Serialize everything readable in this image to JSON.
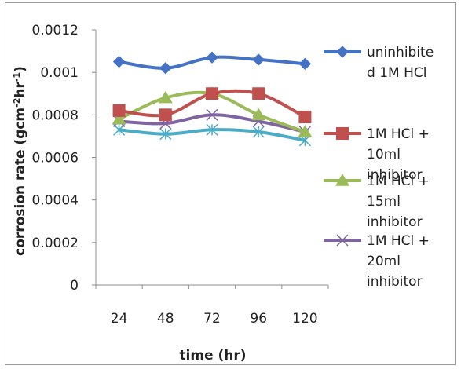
{
  "chart_data": {
    "type": "line",
    "title": "",
    "xlabel": "time (hr)",
    "ylabel_main": "corrosion rate (gcm",
    "ylabel_sup1": "-2",
    "ylabel_mid": "hr",
    "ylabel_sup2": "-1",
    "ylabel_end": ")",
    "categories": [
      "24",
      "48",
      "72",
      "96",
      "120"
    ],
    "ylim": [
      0,
      0.0012
    ],
    "y_ticks": [
      "0",
      "0.0002",
      "0.0004",
      "0.0006",
      "0.0008",
      "0.001",
      "0.0012"
    ],
    "legend_position": "right",
    "series": [
      {
        "legend_lines": [
          "uninhibite",
          "d 1M HCl"
        ],
        "color": "#4472C4",
        "marker": "diamond",
        "values": [
          0.00105,
          0.00102,
          0.00107,
          0.00106,
          0.00104
        ]
      },
      {
        "legend_lines": [
          "1M HCl +",
          "10ml",
          "inhibitor"
        ],
        "color": "#C0504D",
        "marker": "square",
        "values": [
          0.00082,
          0.0008,
          0.0009,
          0.0009,
          0.00079
        ]
      },
      {
        "legend_lines": [
          "1M HCl +",
          "15ml",
          "inhibitor"
        ],
        "color": "#9BBB59",
        "marker": "triangle",
        "values": [
          0.00078,
          0.00088,
          0.0009,
          0.0008,
          0.00072
        ]
      },
      {
        "legend_lines": [
          "1M HCl +",
          "20ml",
          "inhibitor"
        ],
        "color": "#8064A2",
        "marker": "x",
        "values": [
          0.00077,
          0.00076,
          0.0008,
          0.00077,
          0.00072
        ]
      },
      {
        "legend_lines": [],
        "color": "#4BACC6",
        "marker": "star",
        "values": [
          0.00073,
          0.00071,
          0.00073,
          0.00072,
          0.00068
        ]
      }
    ]
  }
}
